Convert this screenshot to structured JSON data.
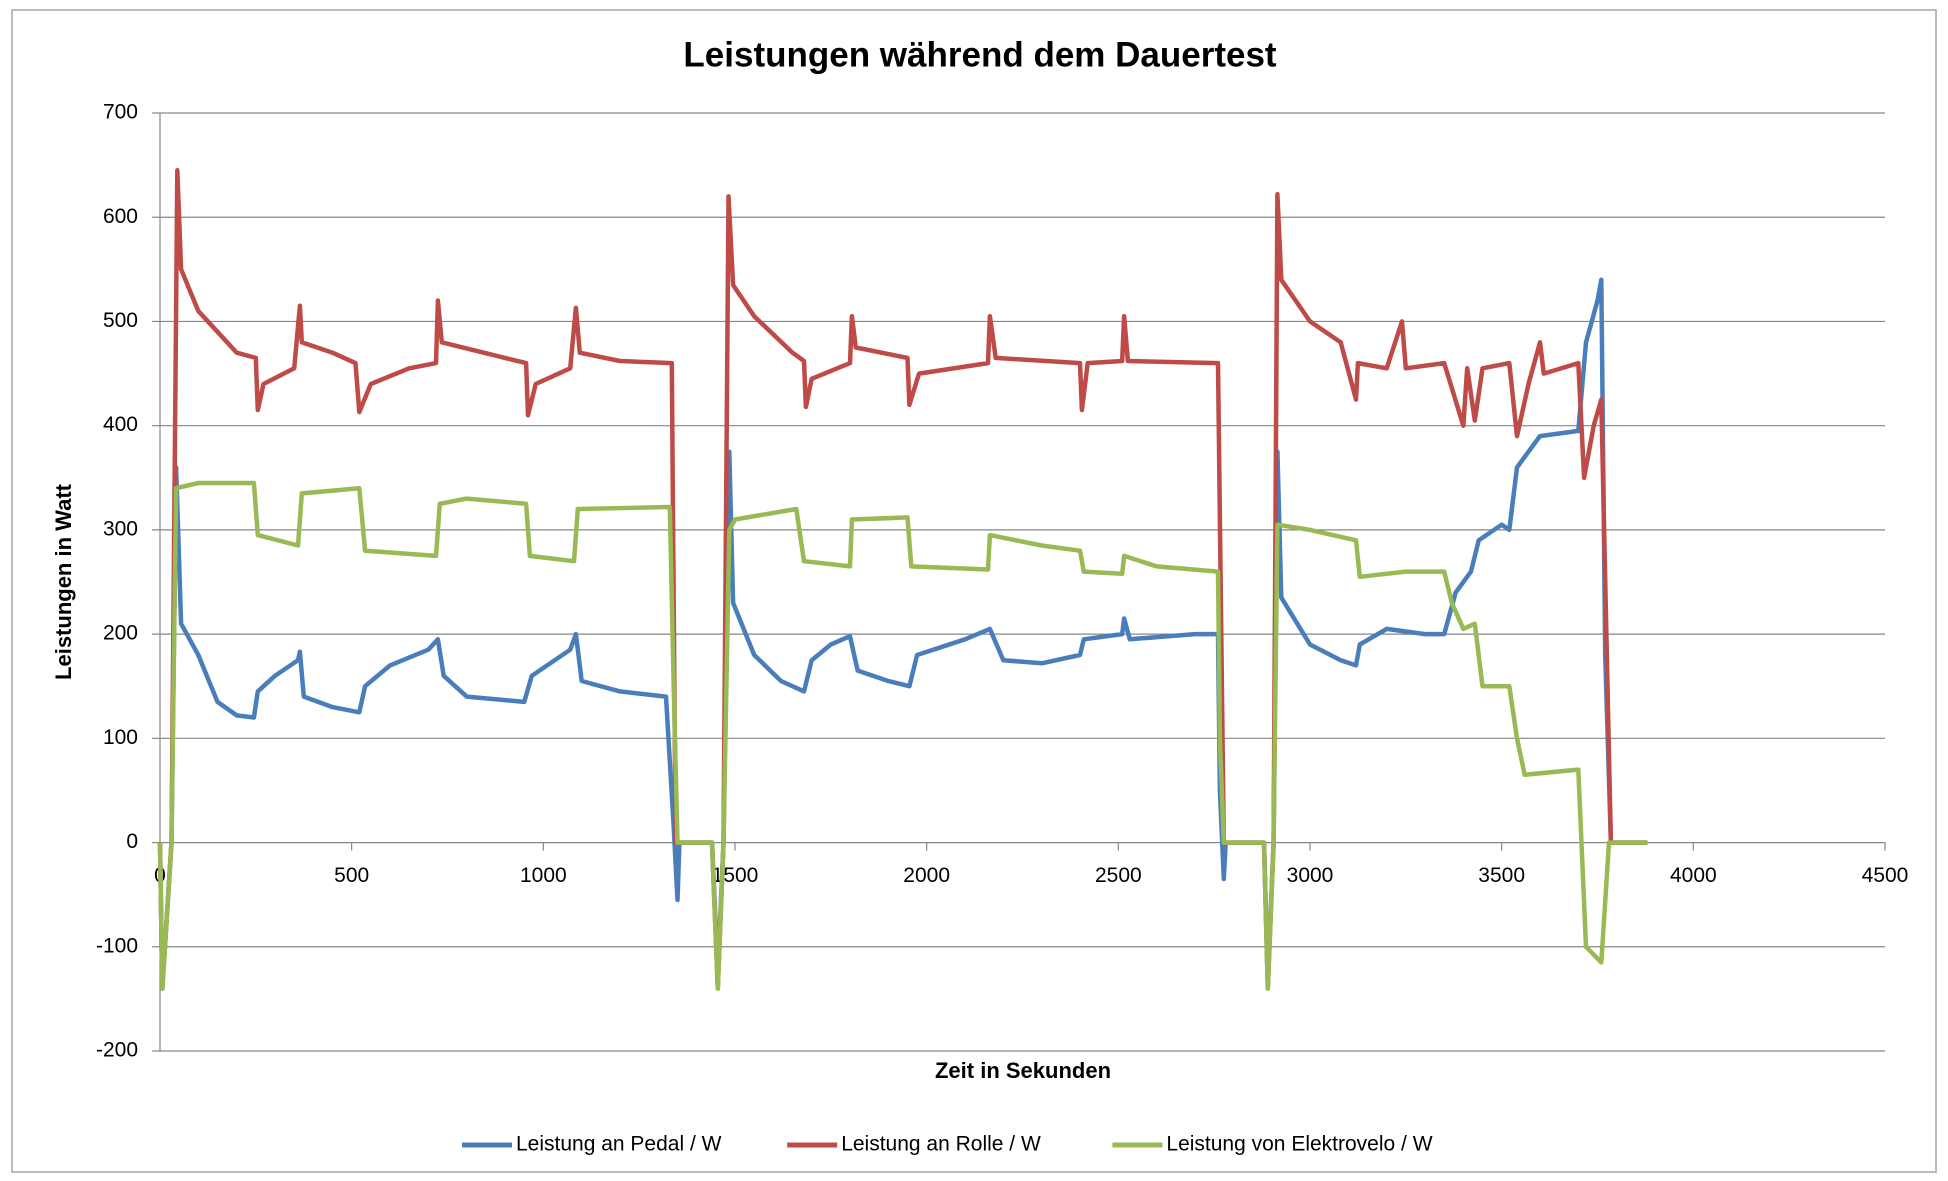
{
  "chart_data": {
    "type": "line",
    "title": "Leistungen während dem Dauertest",
    "xlabel": "Zeit in Sekunden",
    "ylabel": "Leistungen in Watt",
    "xlim": [
      0,
      4500
    ],
    "xticks": [
      0,
      500,
      1000,
      1500,
      2000,
      2500,
      3000,
      3500,
      4000,
      4500
    ],
    "ylim": [
      -200,
      700
    ],
    "yticks": [
      -200,
      -100,
      0,
      100,
      200,
      300,
      400,
      500,
      600,
      700
    ],
    "grid": true,
    "legend": "bottom",
    "series": [
      {
        "name": "Leistung an Pedal / W",
        "color": "#4a7ebb",
        "x": [
          0,
          6,
          30,
          42,
          55,
          100,
          150,
          200,
          245,
          255,
          300,
          360,
          365,
          375,
          450,
          520,
          535,
          600,
          700,
          725,
          740,
          800,
          950,
          970,
          1070,
          1085,
          1100,
          1200,
          1320,
          1340,
          1350,
          1355,
          1440,
          1455,
          1470,
          1485,
          1495,
          1550,
          1620,
          1680,
          1700,
          1750,
          1800,
          1820,
          1900,
          1955,
          1975,
          2100,
          2165,
          2200,
          2300,
          2400,
          2410,
          2510,
          2515,
          2530,
          2700,
          2760,
          2765,
          2775,
          2780,
          2880,
          2890,
          2905,
          2915,
          2925,
          3000,
          3080,
          3120,
          3130,
          3200,
          3300,
          3350,
          3380,
          3420,
          3440,
          3500,
          3520,
          3540,
          3570,
          3600,
          3700,
          3720,
          3750,
          3760,
          3770,
          3785,
          3880
        ],
        "values": [
          0,
          -140,
          0,
          360,
          210,
          180,
          135,
          122,
          120,
          145,
          160,
          175,
          183,
          140,
          130,
          125,
          150,
          170,
          185,
          195,
          160,
          140,
          135,
          160,
          185,
          200,
          155,
          145,
          140,
          15,
          -55,
          0,
          0,
          -125,
          0,
          375,
          230,
          180,
          155,
          145,
          175,
          190,
          198,
          165,
          155,
          150,
          180,
          195,
          205,
          175,
          172,
          180,
          195,
          200,
          215,
          195,
          200,
          200,
          50,
          -35,
          0,
          0,
          -130,
          0,
          375,
          235,
          190,
          175,
          170,
          190,
          205,
          200,
          200,
          240,
          260,
          290,
          305,
          300,
          360,
          375,
          390,
          395,
          480,
          520,
          540,
          180,
          0,
          0
        ]
      },
      {
        "name": "Leistung an Rolle / W",
        "color": "#be4b48",
        "x": [
          0,
          6,
          30,
          45,
          55,
          100,
          200,
          250,
          255,
          270,
          350,
          365,
          370,
          450,
          510,
          520,
          550,
          650,
          720,
          725,
          735,
          900,
          955,
          960,
          980,
          1070,
          1085,
          1095,
          1200,
          1335,
          1345,
          1440,
          1455,
          1470,
          1483,
          1495,
          1550,
          1650,
          1680,
          1685,
          1700,
          1800,
          1805,
          1815,
          1950,
          1955,
          1980,
          2160,
          2165,
          2180,
          2400,
          2405,
          2420,
          2510,
          2515,
          2525,
          2760,
          2775,
          2880,
          2890,
          2905,
          2915,
          2925,
          3000,
          3080,
          3120,
          3125,
          3200,
          3240,
          3250,
          3350,
          3400,
          3410,
          3430,
          3450,
          3520,
          3540,
          3570,
          3600,
          3610,
          3700,
          3715,
          3740,
          3760,
          3785,
          3880
        ],
        "values": [
          0,
          -140,
          0,
          645,
          550,
          510,
          470,
          465,
          415,
          440,
          455,
          515,
          480,
          470,
          460,
          413,
          440,
          455,
          460,
          520,
          480,
          465,
          460,
          410,
          440,
          455,
          513,
          470,
          462,
          460,
          0,
          0,
          -140,
          0,
          620,
          535,
          505,
          470,
          462,
          418,
          445,
          460,
          505,
          475,
          465,
          420,
          450,
          460,
          505,
          465,
          460,
          415,
          460,
          462,
          505,
          462,
          460,
          0,
          0,
          -140,
          0,
          622,
          540,
          500,
          480,
          425,
          460,
          455,
          500,
          455,
          460,
          400,
          455,
          405,
          455,
          460,
          390,
          440,
          480,
          450,
          460,
          350,
          400,
          425,
          0,
          0
        ]
      },
      {
        "name": "Leistung von Elektrovelo / W",
        "color": "#98b954",
        "x": [
          0,
          6,
          30,
          42,
          100,
          245,
          255,
          360,
          370,
          520,
          535,
          720,
          730,
          800,
          955,
          965,
          1080,
          1090,
          1330,
          1340,
          1350,
          1440,
          1455,
          1470,
          1485,
          1500,
          1660,
          1680,
          1800,
          1805,
          1950,
          1960,
          2160,
          2165,
          2300,
          2400,
          2410,
          2510,
          2515,
          2600,
          2760,
          2765,
          2775,
          2880,
          2890,
          2905,
          2915,
          3000,
          3120,
          3130,
          3250,
          3350,
          3370,
          3400,
          3430,
          3450,
          3520,
          3540,
          3560,
          3700,
          3720,
          3760,
          3780,
          3880
        ],
        "values": [
          0,
          -140,
          0,
          340,
          345,
          345,
          295,
          285,
          335,
          340,
          280,
          275,
          325,
          330,
          325,
          275,
          270,
          320,
          322,
          150,
          0,
          0,
          -140,
          0,
          300,
          310,
          320,
          270,
          265,
          310,
          312,
          265,
          262,
          295,
          285,
          280,
          260,
          258,
          275,
          265,
          260,
          100,
          0,
          0,
          -140,
          0,
          305,
          300,
          290,
          255,
          260,
          260,
          230,
          205,
          210,
          150,
          150,
          100,
          65,
          70,
          -100,
          -115,
          0,
          0
        ]
      }
    ]
  }
}
